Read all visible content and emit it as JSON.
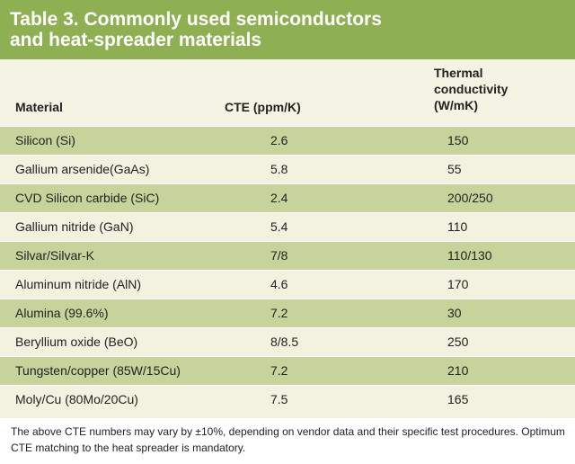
{
  "title": {
    "line1": "Table 3. Commonly used semiconductors",
    "line2": "and heat-spreader materials"
  },
  "headers": {
    "material": "Material",
    "cte": "CTE (ppm/K)",
    "thermal_line1": "Thermal",
    "thermal_line2": "conductivity",
    "thermal_line3": "(W/mK)"
  },
  "rows": [
    {
      "material": "Silicon (Si)",
      "cte": "2.6",
      "thermal": "150"
    },
    {
      "material": "Gallium arsenide(GaAs)",
      "cte": "5.8",
      "thermal": "55"
    },
    {
      "material": "CVD Silicon carbide (SiC)",
      "cte": "2.4",
      "thermal": "200/250"
    },
    {
      "material": "Gallium nitride (GaN)",
      "cte": "5.4",
      "thermal": "110"
    },
    {
      "material": "Silvar/Silvar-K",
      "cte": "7/8",
      "thermal": "110/130"
    },
    {
      "material": "Aluminum nitride (AlN)",
      "cte": "4.6",
      "thermal": "170"
    },
    {
      "material": "Alumina (99.6%)",
      "cte": "7.2",
      "thermal": "30"
    },
    {
      "material": "Beryllium oxide (BeO)",
      "cte": "8/8.5",
      "thermal": "250"
    },
    {
      "material": "Tungsten/copper (85W/15Cu)",
      "cte": "7.2",
      "thermal": "210"
    },
    {
      "material": "Moly/Cu (80Mo/20Cu)",
      "cte": "7.5",
      "thermal": "165"
    }
  ],
  "footnote": "The above CTE numbers may vary by ±10%, depending on vendor data and their specific test procedures. Optimum CTE matching to the heat spreader is mandatory.",
  "colors": {
    "title_bar": "#8fb052",
    "row_dark": "#c6d49c",
    "row_light": "#f3f1df"
  }
}
